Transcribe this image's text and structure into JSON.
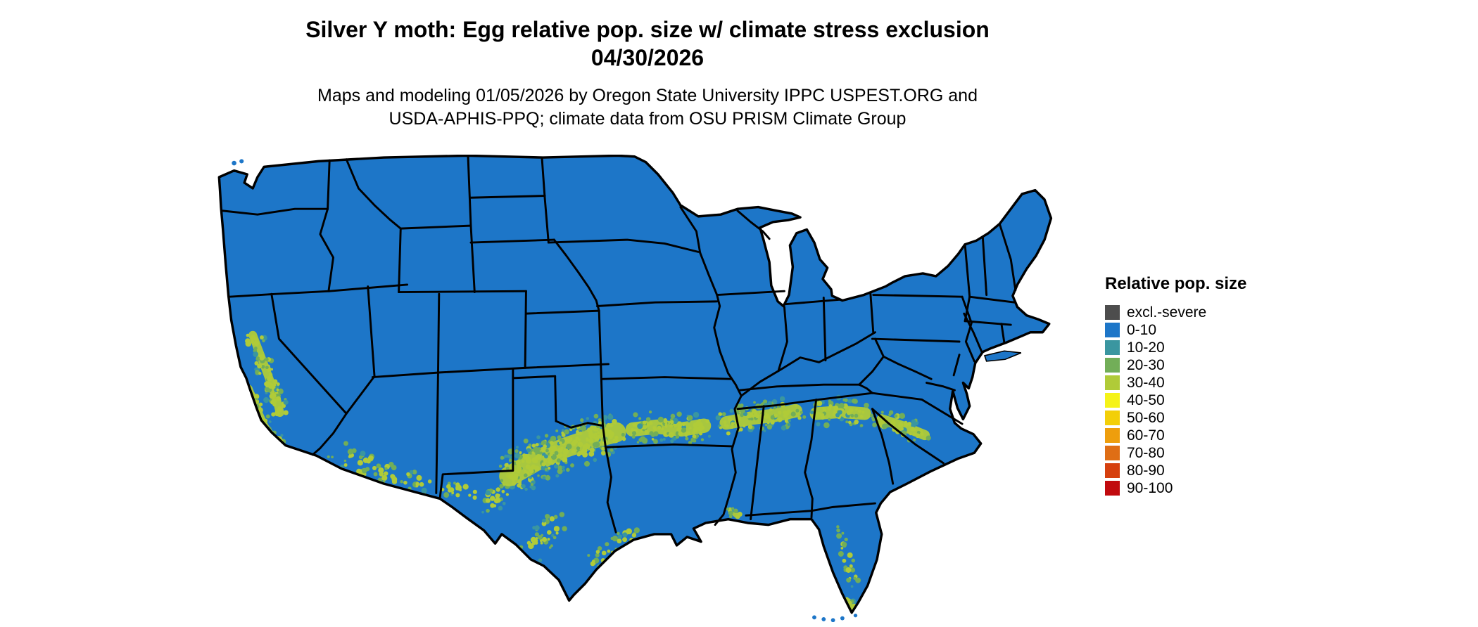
{
  "title": {
    "line1": "Silver Y moth: Egg relative pop. size w/ climate stress exclusion",
    "line2": "04/30/2026"
  },
  "subtitle": {
    "line1": "Maps and modeling 01/05/2026 by Oregon State University IPPC USPEST.ORG and",
    "line2": "USDA-APHIS-PPQ; climate data from OSU PRISM Climate Group"
  },
  "legend": {
    "title": "Relative pop. size",
    "items": [
      {
        "label": "excl.-severe",
        "color": "#4d4d4d"
      },
      {
        "label": "0-10",
        "color": "#1d76c8"
      },
      {
        "label": "10-20",
        "color": "#3a96a0"
      },
      {
        "label": "20-30",
        "color": "#72ae58"
      },
      {
        "label": "30-40",
        "color": "#b0cb38"
      },
      {
        "label": "40-50",
        "color": "#f5f318"
      },
      {
        "label": "50-60",
        "color": "#f3cf08"
      },
      {
        "label": "60-70",
        "color": "#ee9e0d"
      },
      {
        "label": "70-80",
        "color": "#df6e15"
      },
      {
        "label": "80-90",
        "color": "#d6400e"
      },
      {
        "label": "90-100",
        "color": "#c10a0e"
      }
    ]
  },
  "map": {
    "name": "Continental United States",
    "base_value_class": "0-10",
    "colors": {
      "land_base": "#1d76c8",
      "state_border": "#000000",
      "background": "#ffffff",
      "value_palette": {
        "10-20": "#3a96a0",
        "20-30": "#72ae58",
        "30-40": "#b0cb38"
      }
    },
    "hotspots": [
      {
        "name": "california-central-valley",
        "value_class": "30-40",
        "spine": [
          [
            40,
            193
          ],
          [
            48,
            214
          ],
          [
            57,
            238
          ],
          [
            65,
            260
          ],
          [
            69,
            276
          ]
        ],
        "radius": 10,
        "density": 1.0
      },
      {
        "name": "california-central-coast",
        "value_class": "30-40",
        "spine": [
          [
            37,
            250
          ],
          [
            45,
            270
          ],
          [
            54,
            290
          ],
          [
            61,
            300
          ]
        ],
        "radius": 6,
        "density": 0.8
      },
      {
        "name": "southern-california",
        "value_class": "30-40",
        "spine": [
          [
            64,
            303
          ],
          [
            72,
            308
          ]
        ],
        "radius": 6,
        "density": 0.7
      },
      {
        "name": "southern-arizona",
        "value_class": "30-40",
        "spine": [
          [
            128,
            318
          ],
          [
            152,
            330
          ],
          [
            178,
            340
          ],
          [
            204,
            348
          ],
          [
            226,
            353
          ]
        ],
        "radius": 13,
        "density": 0.45
      },
      {
        "name": "southern-new-mexico",
        "value_class": "30-40",
        "spine": [
          [
            242,
            352
          ],
          [
            262,
            360
          ],
          [
            282,
            370
          ]
        ],
        "radius": 11,
        "density": 0.4
      },
      {
        "name": "west-texas",
        "value_class": "30-40",
        "spine": [
          [
            288,
            382
          ],
          [
            302,
            364
          ],
          [
            316,
            350
          ]
        ],
        "radius": 12,
        "density": 0.5
      },
      {
        "name": "central-texas",
        "value_class": "30-40",
        "spine": [
          [
            314,
            344
          ],
          [
            342,
            328
          ],
          [
            372,
            314
          ],
          [
            402,
            304
          ],
          [
            428,
            297
          ]
        ],
        "radius": 24,
        "density": 0.9
      },
      {
        "name": "south-texas",
        "value_class": "30-40",
        "spine": [
          [
            336,
            424
          ],
          [
            352,
            407
          ],
          [
            367,
            391
          ]
        ],
        "radius": 14,
        "density": 0.55
      },
      {
        "name": "texas-gulf-coast",
        "value_class": "30-40",
        "spine": [
          [
            400,
            438
          ],
          [
            416,
            424
          ],
          [
            433,
            413
          ],
          [
            448,
            407
          ]
        ],
        "radius": 9,
        "density": 0.55
      },
      {
        "name": "east-texas-louisiana",
        "value_class": "30-40",
        "spine": [
          [
            446,
            294
          ],
          [
            472,
            291
          ],
          [
            498,
            294
          ],
          [
            522,
            290
          ]
        ],
        "radius": 17,
        "density": 0.75
      },
      {
        "name": "mississippi-alabama",
        "value_class": "30-40",
        "spine": [
          [
            546,
            287
          ],
          [
            572,
            282
          ],
          [
            597,
            279
          ],
          [
            620,
            274
          ]
        ],
        "radius": 16,
        "density": 0.8
      },
      {
        "name": "georgia",
        "value_class": "30-40",
        "spine": [
          [
            642,
            277
          ],
          [
            668,
            275
          ],
          [
            694,
            277
          ]
        ],
        "radius": 15,
        "density": 0.8
      },
      {
        "name": "carolinas-coastal-plain",
        "value_class": "30-40",
        "spine": [
          [
            712,
            283
          ],
          [
            736,
            291
          ],
          [
            758,
            300
          ]
        ],
        "radius": 12,
        "density": 0.7
      },
      {
        "name": "louisiana-gulf-coast",
        "value_class": "30-40",
        "spine": [
          [
            550,
            380
          ],
          [
            558,
            387
          ]
        ],
        "radius": 6,
        "density": 0.9
      },
      {
        "name": "florida-peninsula",
        "value_class": "30-40",
        "spine": [
          [
            660,
            397
          ],
          [
            671,
            421
          ],
          [
            679,
            445
          ],
          [
            683,
            464
          ]
        ],
        "radius": 7,
        "density": 0.45
      },
      {
        "name": "south-florida-tip",
        "value_class": "30-40",
        "spine": [
          [
            677,
            477
          ],
          [
            681,
            486
          ]
        ],
        "radius": 5,
        "density": 0.8
      }
    ]
  }
}
